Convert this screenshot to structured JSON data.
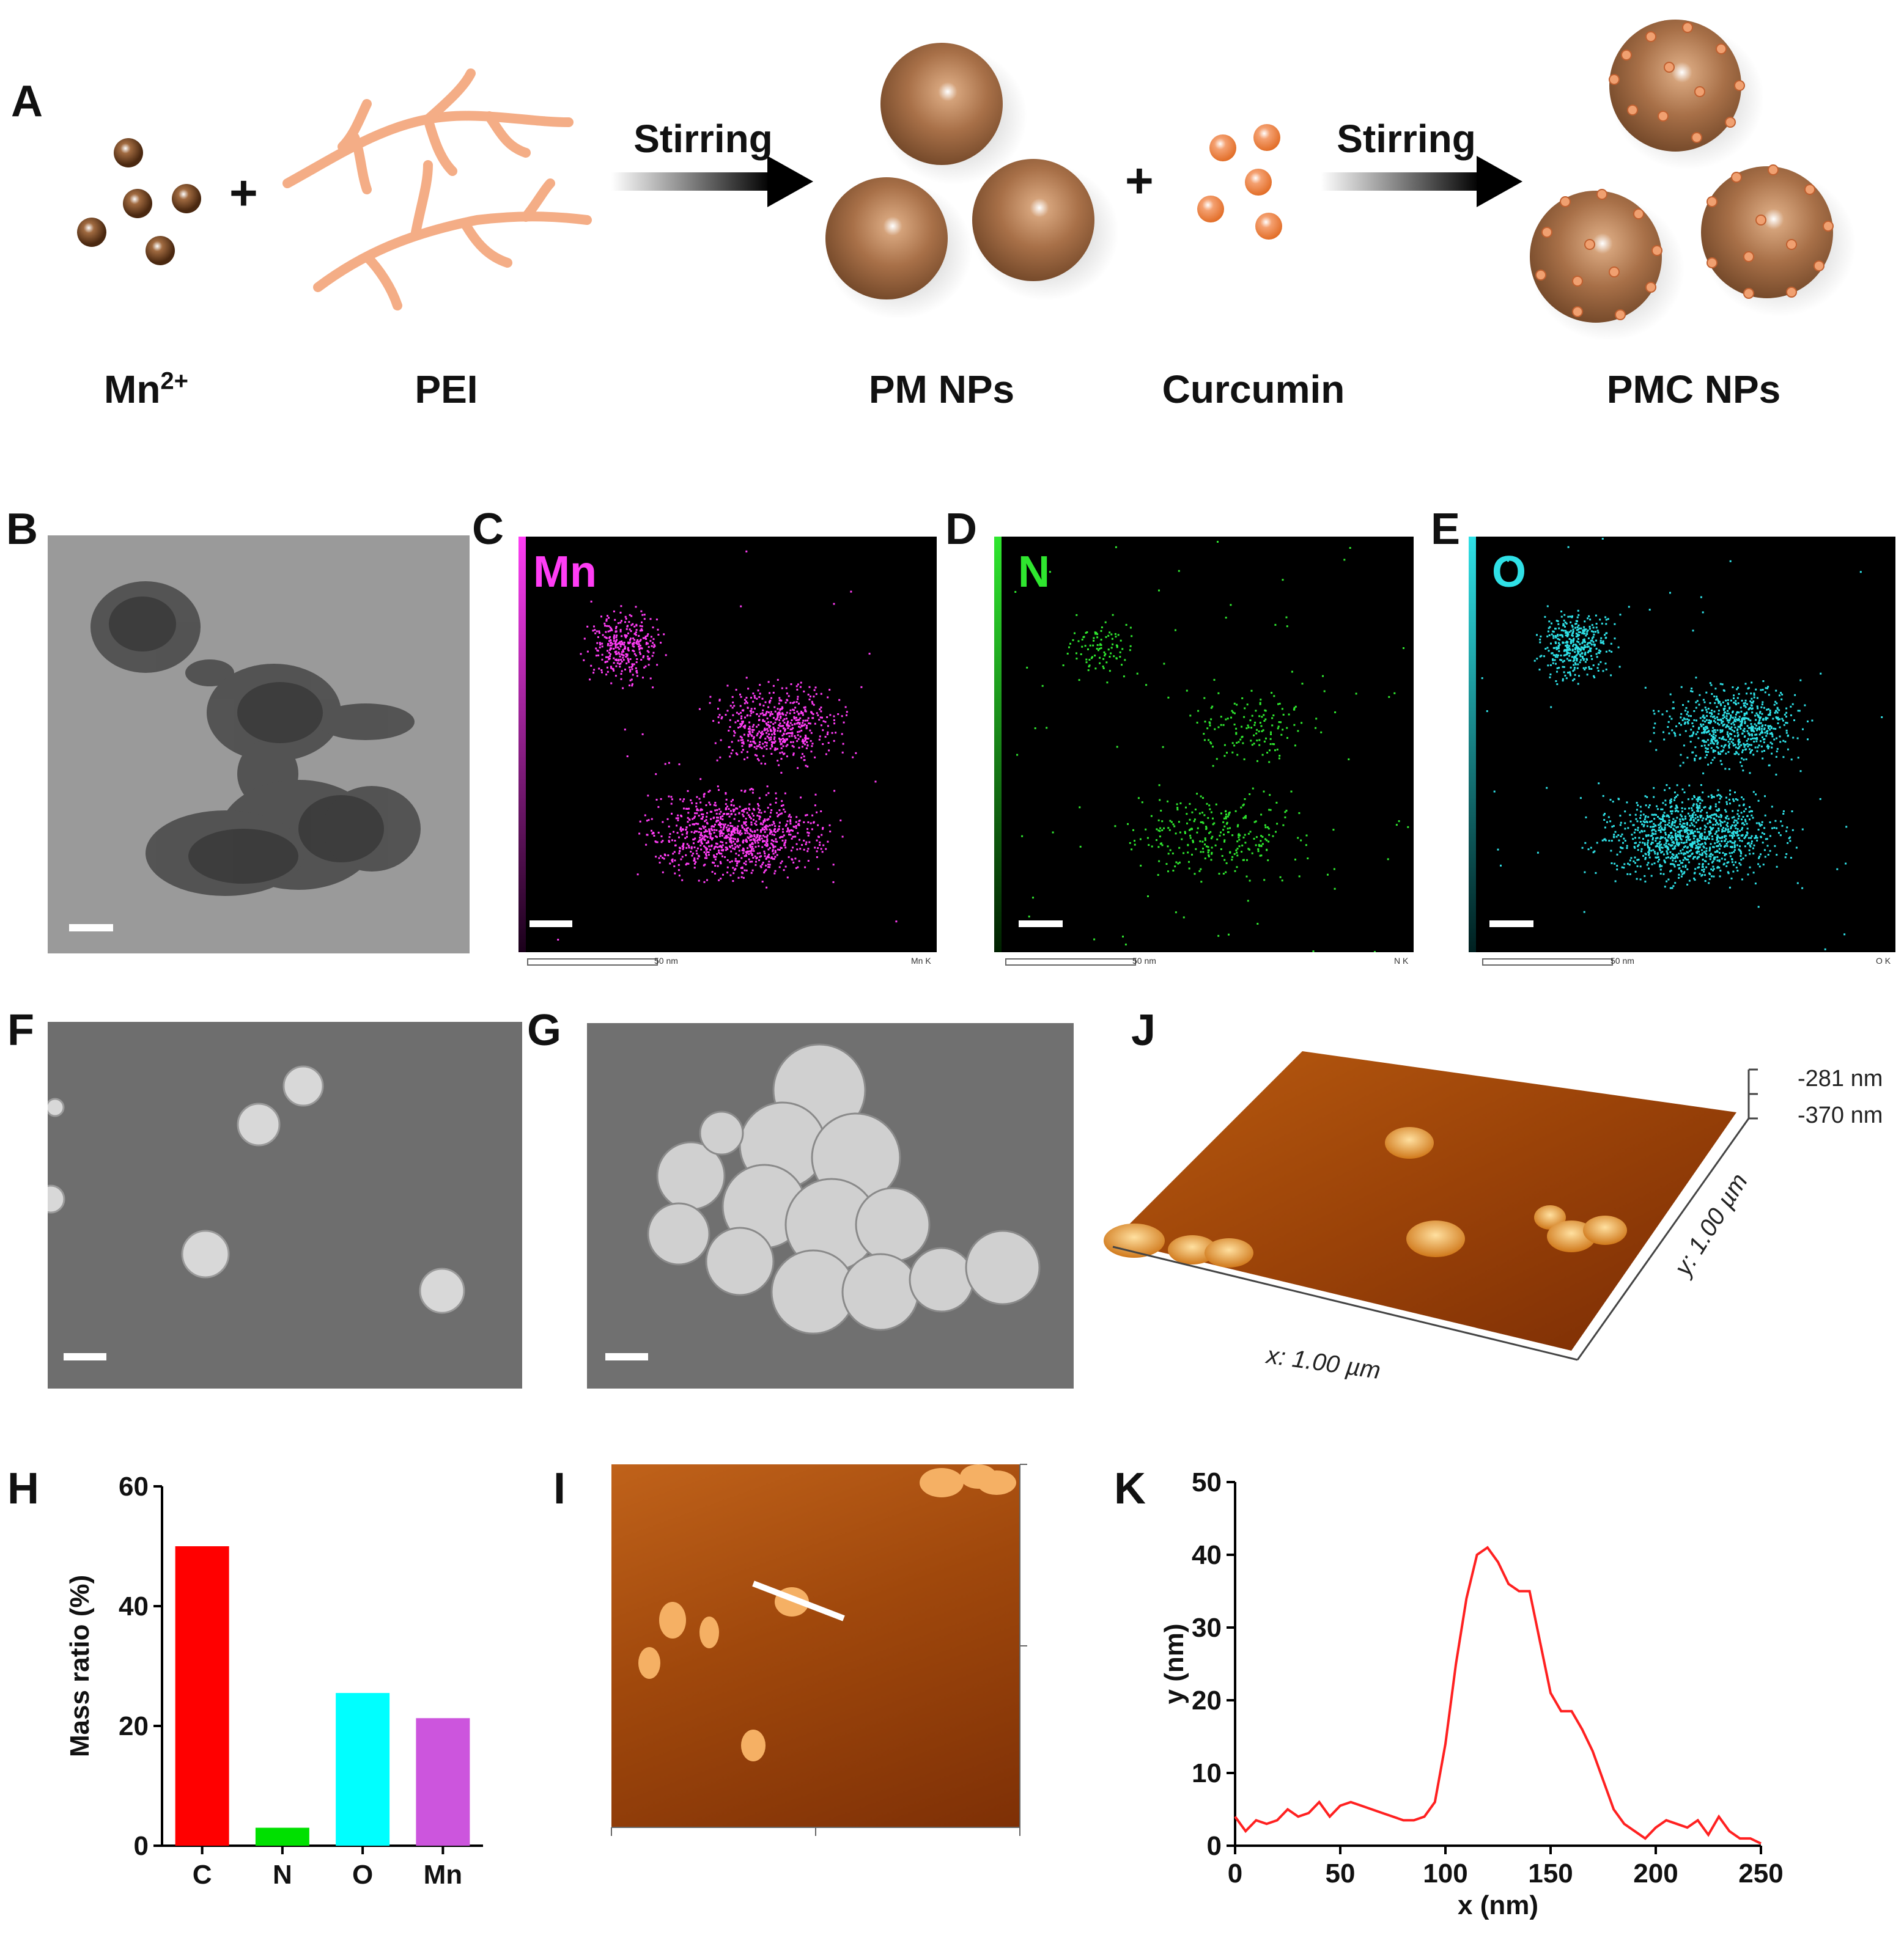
{
  "panels": {
    "A": "A",
    "B": "B",
    "C": "C",
    "D": "D",
    "E": "E",
    "F": "F",
    "G": "G",
    "H": "H",
    "I": "I",
    "J": "J",
    "K": "K"
  },
  "scheme": {
    "mn_label": "Mn",
    "mn_superscript": "2+",
    "pei_label": "PEI",
    "pm_label": "PM NPs",
    "curcumin_label": "Curcumin",
    "pmc_label": "PMC NPs",
    "step1": "Stirring",
    "step2": "Stirring",
    "plus": "+"
  },
  "eds": {
    "mn": {
      "label": "Mn",
      "color": "#ff3df5",
      "scale_text": "50 nm",
      "corner": "Mn K"
    },
    "n": {
      "label": "N",
      "color": "#2fe62f",
      "scale_text": "50 nm",
      "corner": "N K"
    },
    "o": {
      "label": "O",
      "color": "#2fe0e6",
      "scale_text": "50 nm",
      "corner": "O K"
    }
  },
  "afm3d": {
    "x_label": "x: 1.00 µm",
    "y_label": "y: 1.00 µm",
    "z_top": "-281 nm",
    "z_bottom": "-370 nm"
  },
  "chart_data": [
    {
      "type": "bar",
      "panel": "H",
      "categories": [
        "C",
        "N",
        "O",
        "Mn"
      ],
      "values": [
        50,
        3,
        25.5,
        21.3
      ],
      "colors": [
        "#ff0000",
        "#00e000",
        "#00ffff",
        "#cc55dd"
      ],
      "ylabel": "Mass ratio (%)",
      "xlabel": "",
      "ylim": [
        0,
        60
      ],
      "yticks": [
        0,
        20,
        40,
        60
      ]
    },
    {
      "type": "line",
      "panel": "K",
      "xlabel": "x (nm)",
      "ylabel": "y (nm)",
      "xlim": [
        0,
        250
      ],
      "ylim": [
        0,
        50
      ],
      "xticks": [
        0,
        50,
        100,
        150,
        200,
        250
      ],
      "yticks": [
        0,
        10,
        20,
        30,
        40,
        50
      ],
      "color": "#ff2020",
      "x": [
        0,
        5,
        10,
        15,
        20,
        25,
        30,
        35,
        40,
        45,
        50,
        55,
        60,
        65,
        70,
        75,
        80,
        85,
        90,
        95,
        100,
        105,
        110,
        115,
        120,
        125,
        130,
        135,
        140,
        145,
        150,
        155,
        160,
        165,
        170,
        175,
        180,
        185,
        190,
        195,
        200,
        205,
        210,
        215,
        220,
        225,
        230,
        235,
        240,
        245,
        250
      ],
      "y": [
        4,
        2,
        3.5,
        3,
        3.5,
        5,
        4,
        4.5,
        6,
        4,
        5.5,
        6,
        5.5,
        5,
        4.5,
        4,
        3.5,
        3.5,
        4,
        6,
        14,
        25,
        34,
        40,
        41,
        39,
        36,
        35,
        35,
        28,
        21,
        18.5,
        18.5,
        16,
        13,
        9,
        5,
        3,
        2,
        1,
        2.5,
        3.5,
        3,
        2.5,
        3.5,
        1.5,
        4,
        2,
        1,
        1,
        0.3
      ]
    }
  ]
}
